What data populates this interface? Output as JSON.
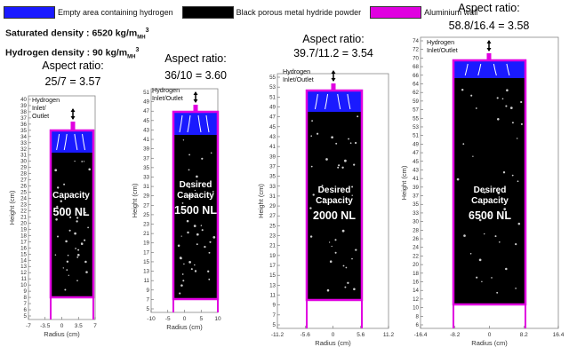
{
  "legend": [
    {
      "label": "Empty area containing hydrogen",
      "color": "#1a1aff"
    },
    {
      "label": "Black porous metal hydride powder",
      "color": "#000000"
    },
    {
      "label": "Aluminium wall",
      "color": "#e000e0"
    }
  ],
  "densities": {
    "saturated": {
      "text": "Saturated density : 6520 kg/m",
      "sub": "MH",
      "sup": "3"
    },
    "hydrogen": {
      "text": "Hydrogen density : 90 kg/m",
      "sub": "MH",
      "sup": "3"
    }
  },
  "tanks": [
    {
      "aspect_title": "Aspect ratio:",
      "aspect_value": "25/7 = 3.57",
      "inlet_lines": [
        "Hydrogen",
        "Inlet/",
        "Outlet"
      ],
      "capacity_label": "Capacity",
      "capacity_value": "500 NL",
      "ylabel": "Height (cm)",
      "xlabel": "Radius (cm)",
      "y_ticks": [
        "40",
        "39",
        "38",
        "37",
        "36",
        "35",
        "34",
        "33",
        "32",
        "31",
        "30",
        "29",
        "28",
        "27",
        "26",
        "25",
        "24",
        "23",
        "22",
        "21",
        "20",
        "19",
        "18",
        "17",
        "16",
        "15",
        "14",
        "13",
        "12",
        "11",
        "10",
        "9",
        "8",
        "7",
        "6",
        "5"
      ],
      "x_ticks": [
        "-7",
        "-3.5",
        "0",
        "3.5",
        "7"
      ]
    },
    {
      "aspect_title": "Aspect ratio:",
      "aspect_value": "36/10 = 3.60",
      "inlet_lines": [
        "Hydrogen",
        "Inlet/Outlet"
      ],
      "capacity_label": "Desired",
      "capacity_label2": "Capacity",
      "capacity_value": "1500 NL",
      "ylabel": "Height (cm)",
      "xlabel": "Radius (cm)",
      "y_ticks": [
        "51",
        "49",
        "47",
        "45",
        "43",
        "41",
        "39",
        "37",
        "35",
        "33",
        "31",
        "29",
        "27",
        "25",
        "23",
        "21",
        "19",
        "17",
        "15",
        "13",
        "11",
        "9",
        "7",
        "5"
      ],
      "x_ticks": [
        "-10",
        "-5",
        "0",
        "5",
        "10"
      ]
    },
    {
      "aspect_title": "Aspect ratio:",
      "aspect_value": "39.7/11.2 = 3.54",
      "inlet_lines": [
        "Hydrogen",
        "Inlet/Outlet"
      ],
      "capacity_label": "Desired",
      "capacity_label2": "Capacity",
      "capacity_value": "2000 NL",
      "ylabel": "Height (cm)",
      "xlabel": "Radius (cm)",
      "y_ticks": [
        "55",
        "53",
        "51",
        "49",
        "47",
        "45",
        "43",
        "41",
        "39",
        "37",
        "35",
        "33",
        "31",
        "29",
        "27",
        "25",
        "23",
        "21",
        "19",
        "17",
        "15",
        "13",
        "11",
        "9",
        "7",
        "5"
      ],
      "x_ticks": [
        "-11.2",
        "-5.6",
        "0",
        "5.6",
        "11.2"
      ]
    },
    {
      "aspect_title": "Aspect ratio:",
      "aspect_value": "58.8/16.4 = 3.58",
      "inlet_lines": [
        "Hydrogen",
        "Inlet/Outlet"
      ],
      "capacity_label": "Desired",
      "capacity_label2": "Capacity",
      "capacity_value": "6500 NL",
      "ylabel": "Height (cm)",
      "xlabel": "Radius (cm)",
      "y_ticks": [
        "74",
        "72",
        "70",
        "68",
        "66",
        "64",
        "62",
        "59",
        "57",
        "55",
        "53",
        "51",
        "49",
        "47",
        "45",
        "43",
        "41",
        "39",
        "37",
        "35",
        "33",
        "30",
        "28",
        "26",
        "24",
        "22",
        "20",
        "18",
        "16",
        "14",
        "12",
        "10",
        "8",
        "6"
      ],
      "x_ticks": [
        "-16.4",
        "-8.2",
        "0",
        "8.2",
        "16.4"
      ]
    }
  ]
}
